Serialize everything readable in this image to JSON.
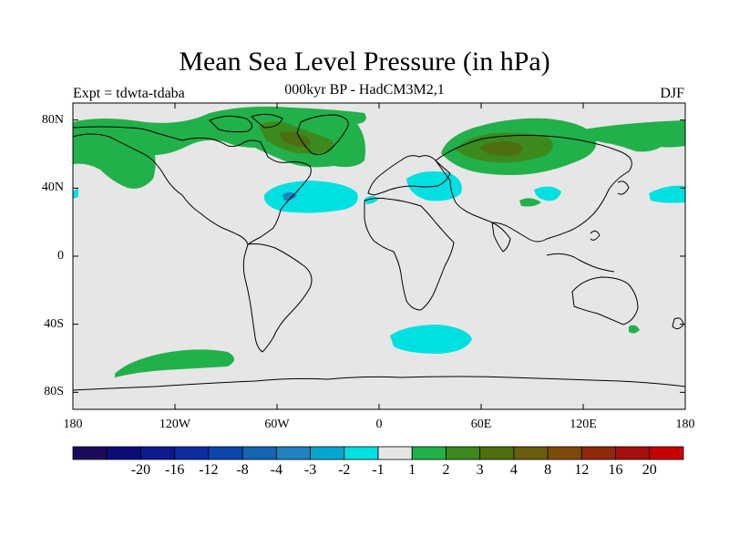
{
  "title": "Mean Sea Level Pressure (in hPa)",
  "subtitle": "000kyr BP - HadCM3M2,1",
  "expt_label": "Expt = tdwta-tdaba",
  "season": "DJF",
  "axes": {
    "lat_ticks": [
      {
        "label": "80N",
        "value": 80
      },
      {
        "label": "40N",
        "value": 40
      },
      {
        "label": "0",
        "value": 0
      },
      {
        "label": "40S",
        "value": -40
      },
      {
        "label": "80S",
        "value": -80
      }
    ],
    "lon_ticks": [
      {
        "label": "180",
        "value": -180
      },
      {
        "label": "120W",
        "value": -120
      },
      {
        "label": "60W",
        "value": -60
      },
      {
        "label": "0",
        "value": 0
      },
      {
        "label": "60E",
        "value": 60
      },
      {
        "label": "120E",
        "value": 120
      },
      {
        "label": "180",
        "value": 180
      }
    ]
  },
  "colorbar": {
    "colors": [
      "#1a0a5c",
      "#0c0c78",
      "#0c1a8c",
      "#0c2ca0",
      "#0c46ac",
      "#1464b4",
      "#1e82c0",
      "#00a8d0",
      "#00e0e0",
      "#e6e6e6",
      "#22b04a",
      "#3c8a1e",
      "#4e6e10",
      "#6a5e0c",
      "#7e4a0a",
      "#8e2a08",
      "#a80e0e",
      "#c80000"
    ],
    "labels": [
      "-20",
      "-16",
      "-12",
      "-8",
      "-4",
      "-3",
      "-2",
      "-1",
      "1",
      "2",
      "3",
      "4",
      "8",
      "12",
      "16",
      "20"
    ],
    "color_map": {
      "neutral": "#e6e6e6",
      "cyan": "#00e0e0",
      "green": "#22b04a",
      "dark_green": "#3c8a1e",
      "olive": "#4e6e10",
      "mid_blue": "#1e82c0"
    }
  },
  "colors": {
    "ocean_neutral": "#e6e6e6",
    "frame": "#000000"
  }
}
